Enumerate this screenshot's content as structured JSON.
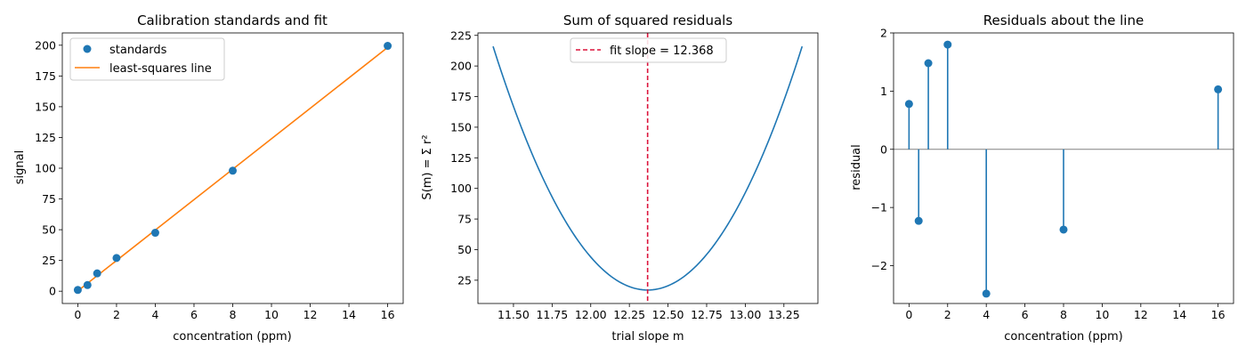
{
  "colors": {
    "blue": "#1f77b4",
    "orange": "#ff7f0e",
    "red": "#dc143c",
    "grey": "#808080"
  },
  "chart_data": [
    {
      "type": "scatter",
      "title": "Calibration standards and fit",
      "xlabel": "concentration (ppm)",
      "ylabel": "signal",
      "xlim": [
        -0.8,
        16.8
      ],
      "ylim": [
        -10,
        210
      ],
      "xticks": [
        0,
        2,
        4,
        6,
        8,
        10,
        12,
        14,
        16
      ],
      "yticks": [
        0,
        25,
        50,
        75,
        100,
        125,
        150,
        175,
        200
      ],
      "legend": "top-left",
      "series": [
        {
          "name": "standards",
          "kind": "points",
          "x": [
            0,
            0.5,
            1,
            2,
            4,
            8,
            16
          ],
          "y": [
            1,
            5,
            14.5,
            27,
            47.5,
            98,
            199.5
          ]
        },
        {
          "name": "least-squares line",
          "kind": "line",
          "x": [
            0,
            16
          ],
          "y": [
            0.2,
            198.2
          ]
        }
      ]
    },
    {
      "type": "line",
      "title": "Sum of squared residuals",
      "xlabel": "trial slope m",
      "ylabel": "S(m) = Σ r²",
      "xlim": [
        11.27,
        13.47
      ],
      "ylim": [
        6,
        227
      ],
      "xticks": [
        11.5,
        11.75,
        12.0,
        12.25,
        12.5,
        12.75,
        13.0,
        13.25
      ],
      "xtick_labels": [
        "11.50",
        "11.75",
        "12.00",
        "12.25",
        "12.50",
        "12.75",
        "13.00",
        "13.25"
      ],
      "yticks": [
        25,
        50,
        75,
        100,
        125,
        150,
        175,
        200,
        225
      ],
      "legend": "top-center",
      "curve": {
        "vertex_x": 12.368,
        "vertex_y": 17,
        "x_min": 11.368,
        "x_max": 13.368,
        "end_y": 216
      },
      "vline": {
        "name": "fit slope = 12.368",
        "x": 12.368
      }
    },
    {
      "type": "stem",
      "title": "Residuals about the line",
      "xlabel": "concentration (ppm)",
      "ylabel": "residual",
      "xlim": [
        -0.8,
        16.8
      ],
      "ylim": [
        -2.65,
        2.0
      ],
      "xticks": [
        0,
        2,
        4,
        6,
        8,
        10,
        12,
        14,
        16
      ],
      "yticks": [
        -2,
        -1,
        0,
        1,
        2
      ],
      "ytick_labels": [
        "−2",
        "−1",
        "0",
        "1",
        "2"
      ],
      "baseline": 0,
      "x": [
        0,
        0.5,
        1,
        2,
        4,
        8,
        16
      ],
      "y": [
        0.78,
        -1.23,
        1.48,
        1.8,
        -2.48,
        -1.38,
        1.03
      ]
    }
  ]
}
